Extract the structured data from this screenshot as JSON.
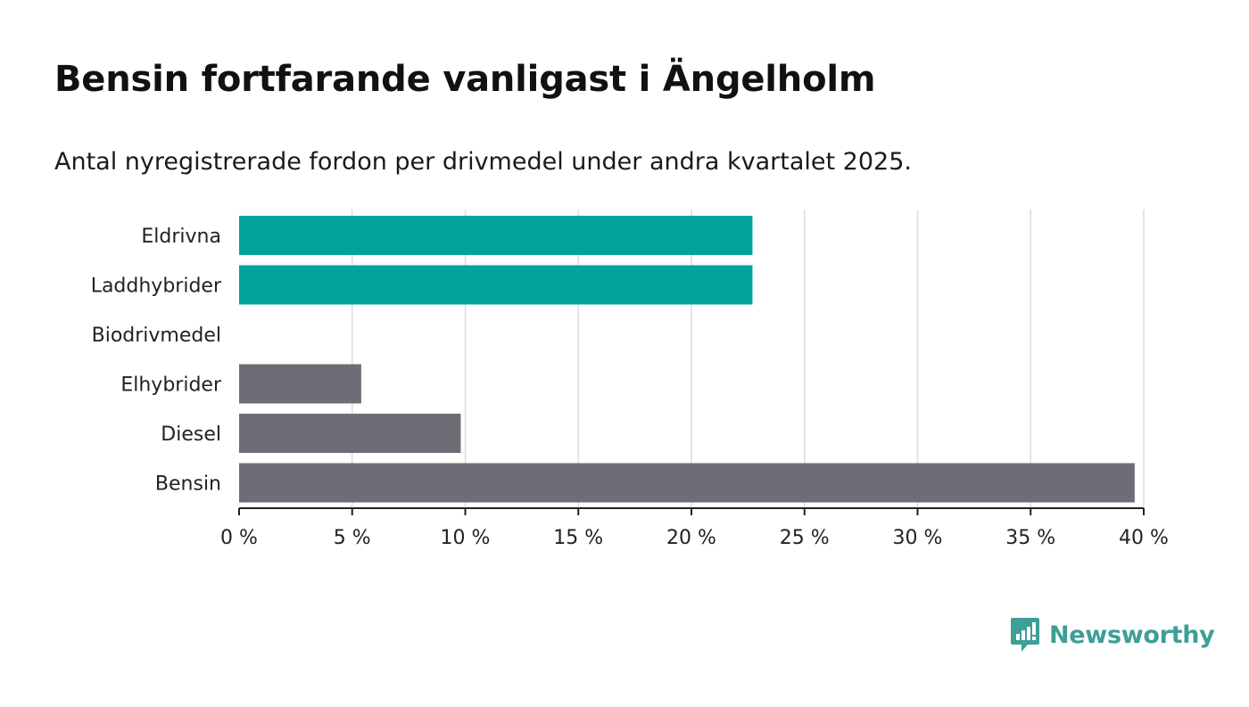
{
  "chart_data": {
    "type": "bar",
    "orientation": "horizontal",
    "title": "Bensin fortfarande vanligast i Ängelholm",
    "subtitle": "Antal nyregistrerade fordon per drivmedel under andra kvartalet 2025.",
    "categories": [
      "Eldrivna",
      "Laddhybrider",
      "Biodrivmedel",
      "Elhybrider",
      "Diesel",
      "Bensin"
    ],
    "values": [
      22.7,
      22.7,
      0,
      5.4,
      9.8,
      39.6
    ],
    "bar_colors": [
      "#00a39a",
      "#00a39a",
      "#00a39a",
      "#6e6d75",
      "#6e6d75",
      "#6e6d75"
    ],
    "xlim": [
      0,
      40
    ],
    "xticks": [
      0,
      5,
      10,
      15,
      20,
      25,
      30,
      35,
      40
    ],
    "xtick_labels": [
      "0 %",
      "5 %",
      "10 %",
      "15 %",
      "20 %",
      "25 %",
      "30 %",
      "35 %",
      "40 %"
    ],
    "xlabel": "",
    "ylabel": "",
    "grid": true,
    "legend": "none"
  },
  "branding": {
    "logo_text": "Newsworthy",
    "logo_icon": "bar-chart-speech-bubble-icon",
    "logo_color": "#3f9e96"
  }
}
